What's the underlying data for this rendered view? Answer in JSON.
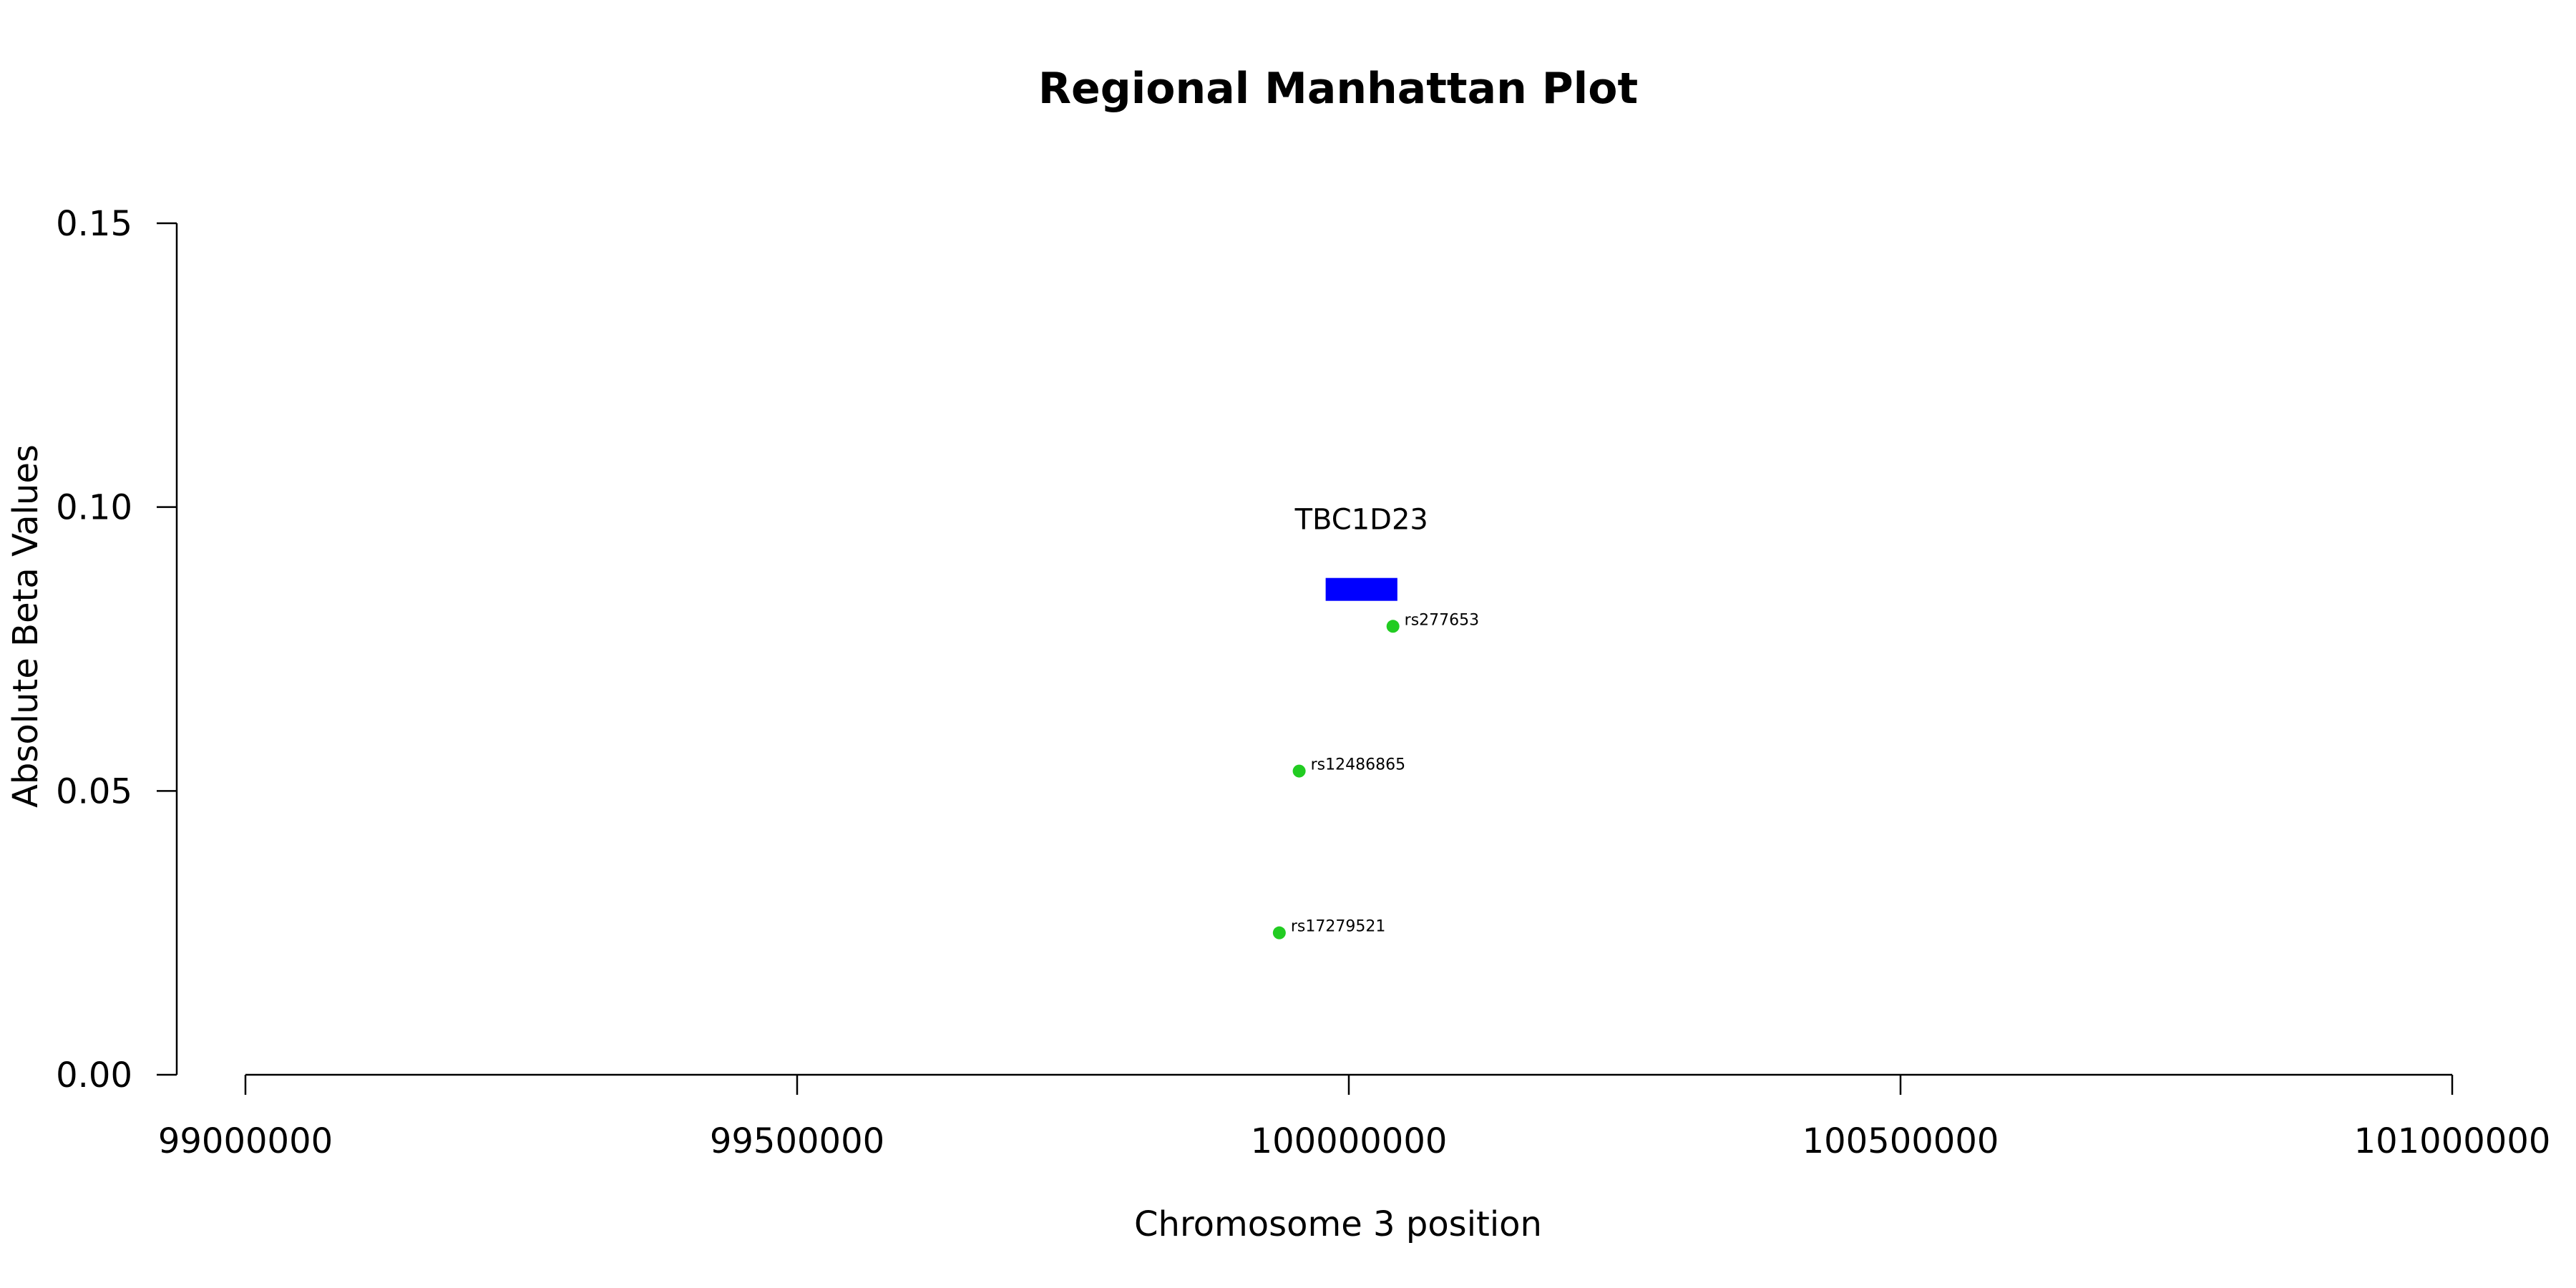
{
  "chart_data": {
    "type": "scatter",
    "title": "Regional Manhattan Plot",
    "xlabel": "Chromosome 3 position",
    "ylabel": "Absolute Beta Values",
    "xlim": [
      99000000,
      101000000
    ],
    "ylim": [
      0,
      0.15
    ],
    "x_ticks": [
      99000000,
      99500000,
      100000000,
      100500000,
      101000000
    ],
    "x_tick_labels": [
      "99000000",
      "99500000",
      "100000000",
      "100500000",
      "101000000"
    ],
    "y_ticks": [
      0,
      0.05,
      0.1,
      0.15
    ],
    "y_tick_labels": [
      "0.00",
      "0.05",
      "0.10",
      "0.15"
    ],
    "grid": false,
    "points": [
      {
        "label": "rs277653",
        "x": 100040000,
        "y": 0.079
      },
      {
        "label": "rs12486865",
        "x": 99955000,
        "y": 0.0535
      },
      {
        "label": "rs17279521",
        "x": 99937000,
        "y": 0.025
      }
    ],
    "point_color": "#22cc22",
    "genes": [
      {
        "name": "TBC1D23",
        "start": 99979000,
        "end": 100044000,
        "y": 0.0855
      }
    ],
    "gene_color": "#0000ff"
  }
}
